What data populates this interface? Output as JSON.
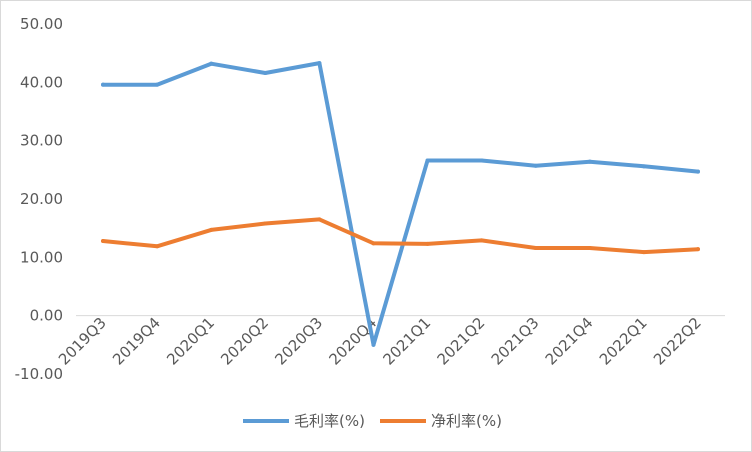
{
  "chart_data": {
    "type": "line",
    "categories": [
      "2019Q3",
      "2019Q4",
      "2020Q1",
      "2020Q2",
      "2020Q3",
      "2020Q4",
      "2021Q1",
      "2021Q2",
      "2021Q3",
      "2021Q4",
      "2022Q1",
      "2022Q2"
    ],
    "series": [
      {
        "name": "毛利率(%)",
        "color": "#5b9bd5",
        "values": [
          39.6,
          39.6,
          43.2,
          41.6,
          43.3,
          -5.0,
          26.6,
          26.6,
          25.7,
          26.4,
          25.6,
          24.7
        ]
      },
      {
        "name": "净利率(%)",
        "color": "#ed7d31",
        "values": [
          12.8,
          11.9,
          14.7,
          15.8,
          16.5,
          12.4,
          12.3,
          12.9,
          11.6,
          11.6,
          10.9,
          11.4
        ]
      }
    ],
    "yticks": [
      "50.00",
      "40.00",
      "30.00",
      "20.00",
      "10.00",
      "0.00",
      "-10.00"
    ],
    "ylim": [
      -10,
      50
    ],
    "grid": false,
    "legend": "bottom",
    "title": "",
    "xlabel": "",
    "ylabel": ""
  }
}
